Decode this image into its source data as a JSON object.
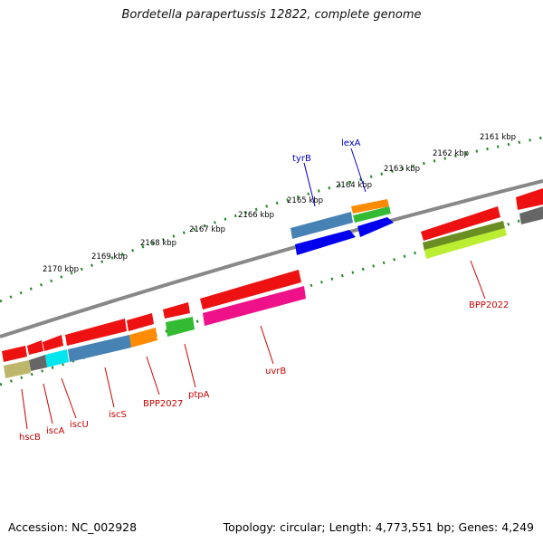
{
  "header": {
    "title": "Bordetella parapertussis 12822, complete genome"
  },
  "footer": {
    "accession": "Accession: NC_002928",
    "summary": "Topology: circular; Length: 4,773,551 bp; Genes: 4,249"
  },
  "scale_labels": [
    "2161 kbp",
    "2162 kbp",
    "2163 kbp",
    "2164 kbp",
    "2165 kbp",
    "2166 kbp",
    "2167 kbp",
    "2168 kbp",
    "2169 kbp",
    "2170 kbp"
  ],
  "gene_labels": {
    "tyrB": "tyrB",
    "lexA": "lexA",
    "BPP2022": "BPP2022",
    "uvrB": "uvrB",
    "ptpA": "ptpA",
    "BPP2027": "BPP2027",
    "iscS": "iscS",
    "iscU": "iscU",
    "iscA": "iscA",
    "hscB": "hscB"
  },
  "colors": {
    "backbone": "#888888",
    "tick": "#228822",
    "label_red": "#cc0000",
    "label_blue": "#0000cc",
    "red": "#ee1111",
    "blue": "#0000ee",
    "steelblue": "#4682b4",
    "orange": "#ff8c00",
    "green": "#33bb33",
    "olive": "#6b8e23",
    "lime": "#bbee33",
    "magenta": "#ee1188",
    "gray": "#666666",
    "cyan": "#00e5ee",
    "khaki": "#bdb76b"
  }
}
